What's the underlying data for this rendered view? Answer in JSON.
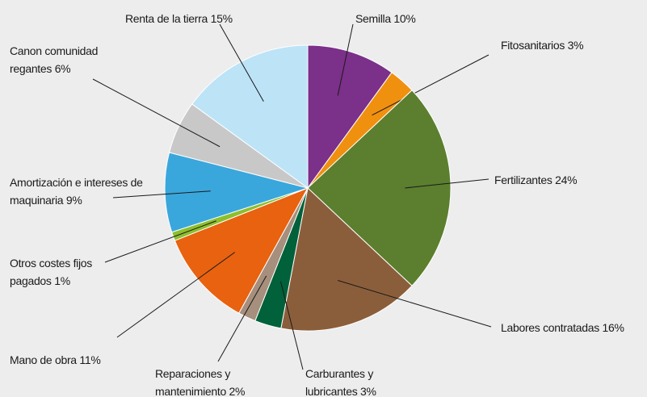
{
  "chart_data": {
    "type": "pie",
    "categories": [
      "Semilla",
      "Fitosanitarios",
      "Fertilizantes",
      "Labores contratadas",
      "Carburantes y lubricantes",
      "Reparaciones y mantenimiento",
      "Mano de obra",
      "Otros costes fijos pagados",
      "Amortización e intereses de maquinaria",
      "Canon comunidad regantes",
      "Renta de la tierra"
    ],
    "values": [
      10,
      3,
      24,
      16,
      3,
      2,
      11,
      1,
      9,
      6,
      15
    ],
    "value_labels": [
      "10%",
      "3%",
      "24%",
      "16%",
      "3%",
      "2%",
      "11%",
      "1%",
      "9%",
      "6%",
      "15%"
    ],
    "colors": [
      "#7b3089",
      "#f0900f",
      "#5b7f2e",
      "#8b5e3b",
      "#00613a",
      "#a68f7c",
      "#e8620f",
      "#8dbf2c",
      "#3aa7dc",
      "#c8c8c8",
      "#bde3f7"
    ]
  }
}
